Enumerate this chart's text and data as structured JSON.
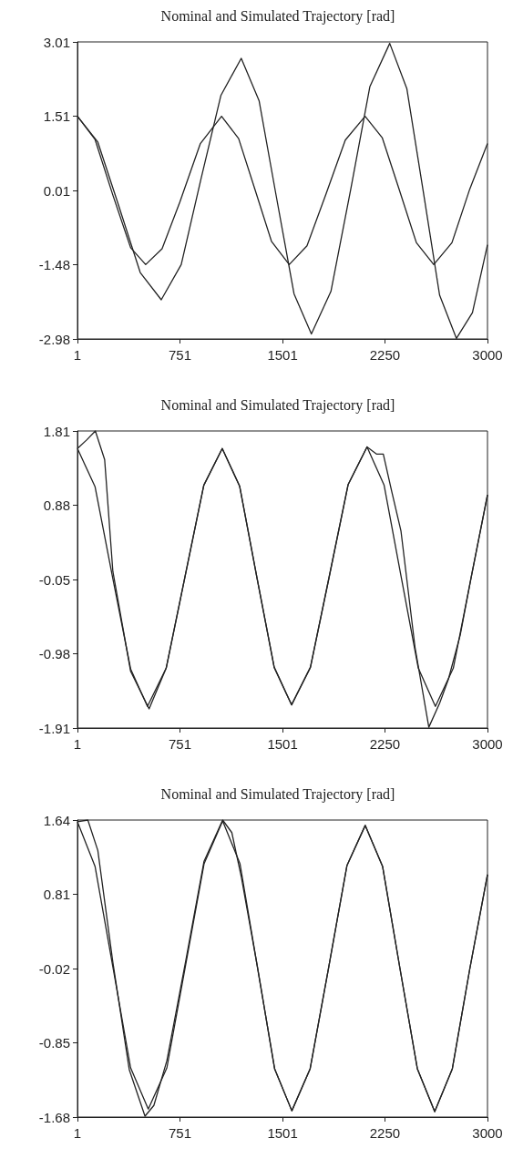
{
  "chart_data": [
    {
      "type": "line",
      "title": "Nominal and Simulated Trajectory [rad]",
      "marker": "none",
      "xlim": [
        1,
        3000
      ],
      "xticks": [
        1,
        751,
        1501,
        2250,
        3000
      ],
      "ylim": [
        -2.98,
        3.01
      ],
      "yticks": [
        -2.98,
        -1.48,
        0.01,
        1.51,
        3.01
      ],
      "series": [
        {
          "color": "#222222",
          "x": [
            1,
            130,
            260,
            390,
            500,
            620,
            750,
            900,
            1055,
            1180,
            1300,
            1420,
            1550,
            1680,
            1820,
            1960,
            2105,
            2230,
            2350,
            2480,
            2607,
            2740,
            2870,
            3000
          ],
          "values": [
            1.51,
            1.04,
            -0.08,
            -1.14,
            -1.48,
            -1.16,
            -0.22,
            0.96,
            1.51,
            1.06,
            0.03,
            -1.01,
            -1.48,
            -1.1,
            -0.05,
            1.03,
            1.51,
            1.08,
            0.07,
            -1.04,
            -1.48,
            -1.04,
            0.04,
            0.96
          ]
        },
        {
          "color": "#222222",
          "x": [
            1,
            150,
            300,
            460,
            614,
            760,
            905,
            1050,
            1199,
            1330,
            1455,
            1585,
            1712,
            1855,
            2000,
            2140,
            2285,
            2410,
            2530,
            2650,
            2773,
            2890,
            3000
          ],
          "values": [
            1.51,
            0.99,
            -0.27,
            -1.64,
            -2.19,
            -1.48,
            0.25,
            1.93,
            2.68,
            1.82,
            -0.1,
            -2.07,
            -2.88,
            -2.02,
            0.04,
            2.11,
            2.98,
            2.07,
            0.0,
            -2.1,
            -2.97,
            -2.45,
            -1.08
          ]
        }
      ]
    },
    {
      "type": "line",
      "title": "Nominal and Simulated Trajectory [rad]",
      "marker": "none",
      "xlim": [
        1,
        3000
      ],
      "xticks": [
        1,
        751,
        1501,
        2250,
        3000
      ],
      "ylim": [
        -1.91,
        1.81
      ],
      "yticks": [
        -1.91,
        -0.98,
        -0.05,
        0.88,
        1.81
      ],
      "series": [
        {
          "color": "#222222",
          "x": [
            1,
            130,
            260,
            390,
            513,
            650,
            787,
            925,
            1060,
            1187,
            1313,
            1440,
            1567,
            1705,
            1843,
            1981,
            2119,
            2244,
            2369,
            2494,
            2619,
            2750,
            2880,
            3000
          ],
          "values": [
            1.59,
            1.11,
            -0.04,
            -1.17,
            -1.64,
            -1.16,
            -0.02,
            1.13,
            1.59,
            1.12,
            -0.02,
            -1.15,
            -1.62,
            -1.15,
            -0.01,
            1.14,
            1.61,
            1.13,
            -0.02,
            -1.16,
            -1.64,
            -1.16,
            -0.03,
            1.01
          ]
        },
        {
          "color": "#222222",
          "x": [
            1,
            70,
            132,
            200,
            260,
            390,
            525,
            650,
            787,
            925,
            1060,
            1187,
            1313,
            1440,
            1567,
            1705,
            1843,
            1981,
            2119,
            2190,
            2238,
            2300,
            2367,
            2470,
            2571,
            2650,
            2714,
            2800,
            2880,
            3000
          ],
          "values": [
            1.59,
            1.7,
            1.81,
            1.45,
            0.05,
            -1.2,
            -1.67,
            -1.16,
            -0.02,
            1.13,
            1.59,
            1.12,
            -0.02,
            -1.15,
            -1.62,
            -1.15,
            -0.01,
            1.14,
            1.61,
            1.52,
            1.52,
            1.05,
            0.56,
            -0.9,
            -1.9,
            -1.6,
            -1.3,
            -0.75,
            -0.03,
            1.01
          ]
        }
      ]
    },
    {
      "type": "line",
      "title": "Nominal and Simulated Trajectory [rad]",
      "marker": "none",
      "xlim": [
        1,
        3000
      ],
      "xticks": [
        1,
        751,
        1501,
        2250,
        3000
      ],
      "ylim": [
        -1.68,
        1.64
      ],
      "yticks": [
        -1.68,
        -0.85,
        -0.02,
        0.81,
        1.64
      ],
      "series": [
        {
          "color": "#222222",
          "x": [
            1,
            130,
            260,
            390,
            519,
            655,
            791,
            927,
            1063,
            1190,
            1316,
            1443,
            1569,
            1703,
            1838,
            1972,
            2106,
            2233,
            2360,
            2487,
            2614,
            2743,
            2871,
            3000
          ],
          "values": [
            1.62,
            1.12,
            0.0,
            -1.13,
            -1.59,
            -1.13,
            0.01,
            1.15,
            1.63,
            1.15,
            0.01,
            -1.14,
            -1.61,
            -1.14,
            -0.01,
            1.13,
            1.58,
            1.12,
            -0.02,
            -1.14,
            -1.62,
            -1.14,
            -0.02,
            1.03
          ]
        },
        {
          "color": "#222222",
          "x": [
            1,
            77,
            150,
            260,
            380,
            495,
            560,
            655,
            791,
            927,
            1063,
            1130,
            1200,
            1316,
            1443,
            1569,
            1703,
            1838,
            1972,
            2106,
            2233,
            2360,
            2487,
            2614,
            2743,
            2871,
            3000
          ],
          "values": [
            1.62,
            1.64,
            1.3,
            0.05,
            -1.15,
            -1.67,
            -1.55,
            -1.05,
            0.05,
            1.18,
            1.64,
            1.5,
            1.0,
            0.01,
            -1.14,
            -1.61,
            -1.14,
            -0.01,
            1.13,
            1.58,
            1.12,
            -0.02,
            -1.14,
            -1.62,
            -1.14,
            -0.02,
            1.03
          ]
        }
      ]
    }
  ]
}
